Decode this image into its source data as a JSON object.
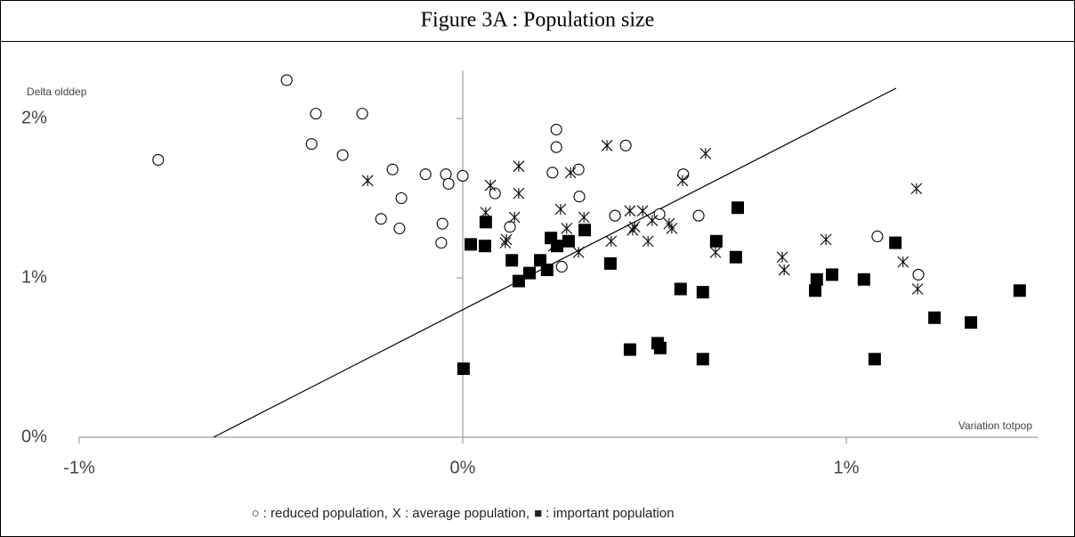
{
  "chart_data": {
    "type": "scatter",
    "title": "Figure 3A : Population size",
    "y_label": "Delta olddep",
    "x_label": "Variation totpop",
    "xlim": [
      -1,
      1.5
    ],
    "ylim": [
      0,
      2.3
    ],
    "xticks": [
      {
        "value": -1,
        "label": "-1%"
      },
      {
        "value": 0,
        "label": "0%"
      },
      {
        "value": 1,
        "label": "1%"
      }
    ],
    "yticks": [
      {
        "value": 0,
        "label": "0%"
      },
      {
        "value": 1,
        "label": "1%"
      },
      {
        "value": 2,
        "label": "2%"
      }
    ],
    "grid": false,
    "trend_line": {
      "color": "#000000",
      "x": [
        -0.65,
        1.13
      ],
      "y": [
        0,
        2.19
      ]
    },
    "series": [
      {
        "name": "○ : reduced population,",
        "marker": "circle",
        "color": "#000000",
        "x": [
          -0.794,
          -0.459,
          -0.383,
          -0.394,
          -0.313,
          -0.262,
          -0.183,
          -0.213,
          -0.16,
          -0.097,
          -0.165,
          -0.053,
          -0.044,
          -0.037,
          0,
          -0.056,
          0.084,
          0.123,
          0.244,
          0.244,
          0.302,
          0.234,
          0.304,
          0.258,
          0.397,
          0.425,
          0.513,
          0.575,
          0.615,
          1.081,
          1.188
        ],
        "y": [
          1.74,
          2.24,
          2.03,
          1.84,
          1.77,
          2.03,
          1.68,
          1.37,
          1.5,
          1.65,
          1.31,
          1.34,
          1.65,
          1.59,
          1.64,
          1.22,
          1.53,
          1.32,
          1.93,
          1.82,
          1.68,
          1.66,
          1.51,
          1.07,
          1.39,
          1.83,
          1.4,
          1.65,
          1.39,
          1.26,
          1.02
        ]
      },
      {
        "name": "X : average population,",
        "marker": "asterisk",
        "color": "#000000",
        "x": [
          -0.248,
          0.146,
          0.072,
          0.146,
          0.06,
          0.111,
          0.135,
          0.114,
          0.316,
          0.281,
          0.255,
          0.237,
          0.271,
          0.302,
          0.387,
          0.436,
          0.443,
          0.469,
          0.448,
          0.483,
          0.494,
          0.538,
          0.545,
          0.633,
          0.573,
          0.659,
          0.833,
          0.838,
          0.947,
          1.183,
          1.148,
          1.186,
          0.376
        ],
        "y": [
          1.61,
          1.7,
          1.58,
          1.53,
          1.41,
          1.22,
          1.38,
          1.24,
          1.38,
          1.66,
          1.43,
          1.2,
          1.31,
          1.16,
          1.23,
          1.42,
          1.3,
          1.42,
          1.32,
          1.23,
          1.36,
          1.34,
          1.31,
          1.78,
          1.61,
          1.16,
          1.13,
          1.05,
          1.24,
          1.56,
          1.1,
          0.93,
          1.83
        ]
      },
      {
        "name": "■ : important population",
        "marker": "square",
        "color": "#000000",
        "x": [
          0.002,
          0.021,
          0.058,
          0.06,
          0.128,
          0.146,
          0.174,
          0.202,
          0.22,
          0.23,
          0.246,
          0.276,
          0.318,
          0.385,
          0.436,
          0.508,
          0.515,
          0.568,
          0.626,
          0.626,
          0.661,
          0.717,
          0.712,
          0.919,
          0.923,
          0.963,
          1.046,
          1.074,
          1.128,
          1.23,
          1.325,
          1.452
        ],
        "y": [
          0.43,
          1.21,
          1.2,
          1.35,
          1.11,
          0.98,
          1.03,
          1.11,
          1.05,
          1.25,
          1.2,
          1.23,
          1.3,
          1.09,
          0.55,
          0.59,
          0.56,
          0.93,
          0.91,
          0.49,
          1.23,
          1.44,
          1.13,
          0.92,
          0.99,
          1.02,
          0.99,
          0.49,
          1.22,
          0.75,
          0.72,
          0.92
        ]
      }
    ]
  }
}
